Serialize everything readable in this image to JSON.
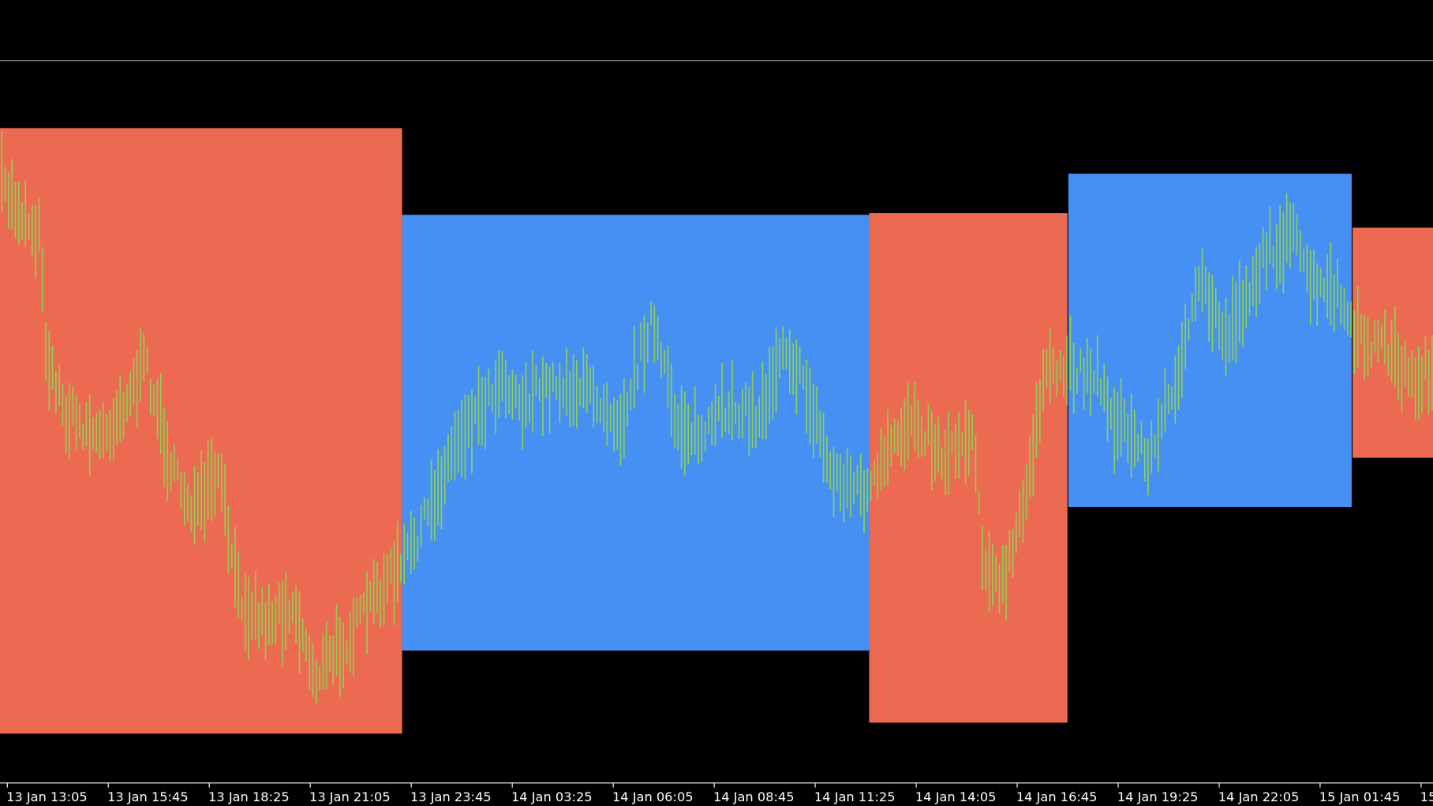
{
  "time_axis": {
    "labels": [
      "13 Jan 13:05",
      "13 Jan 15:45",
      "13 Jan 18:25",
      "13 Jan 21:05",
      "13 Jan 23:45",
      "14 Jan 03:25",
      "14 Jan 06:05",
      "14 Jan 08:45",
      "14 Jan 11:25",
      "14 Jan 14:05",
      "14 Jan 16:45",
      "14 Jan 19:25",
      "14 Jan 22:05",
      "15 Jan 01:45",
      "15"
    ]
  }
}
